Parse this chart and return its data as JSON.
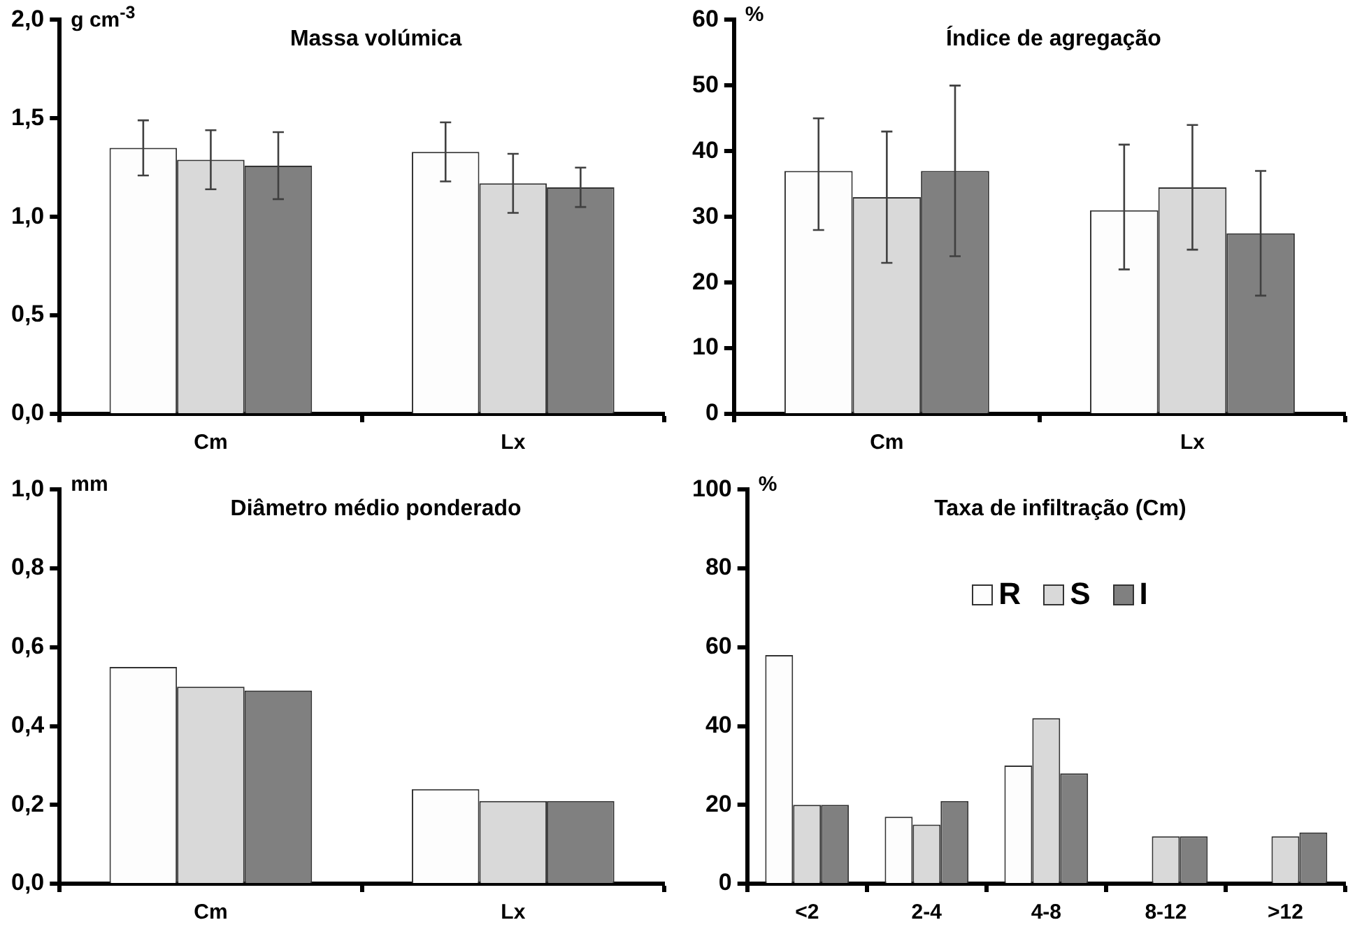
{
  "chart_data": [
    {
      "type": "bar",
      "title": "Massa volúmica",
      "ylabel": "g cm$^{-3}$",
      "categories": [
        "Cm",
        "Lx"
      ],
      "ylim": [
        0,
        2
      ],
      "yticks": [
        {
          "value": 0,
          "label": "0,0"
        },
        {
          "value": 0.5,
          "label": "0,5"
        },
        {
          "value": 1,
          "label": "1,0"
        },
        {
          "value": 1.5,
          "label": "1,5"
        },
        {
          "value": 2,
          "label": "2,0"
        }
      ],
      "grid": false,
      "legend": false,
      "series": [
        {
          "color": "#fdfdfd",
          "values": [
            1.35,
            1.33
          ],
          "errors": [
            [
              1.21,
              1.49
            ],
            [
              1.18,
              1.48
            ]
          ]
        },
        {
          "color": "#d9d9d9",
          "values": [
            1.29,
            1.17
          ],
          "errors": [
            [
              1.14,
              1.44
            ],
            [
              1.02,
              1.32
            ]
          ]
        },
        {
          "color": "#808080",
          "values": [
            1.26,
            1.15
          ],
          "errors": [
            [
              1.09,
              1.43
            ],
            [
              1.05,
              1.25
            ]
          ]
        }
      ]
    },
    {
      "type": "bar",
      "title": "Índice de agregação",
      "ylabel": "%",
      "categories": [
        "Cm",
        "Lx"
      ],
      "ylim": [
        0,
        60
      ],
      "yticks": [
        0,
        10,
        20,
        30,
        40,
        50,
        60
      ],
      "grid": false,
      "legend": false,
      "series": [
        {
          "color": "#fdfdfd",
          "values": [
            37,
            31
          ],
          "errors": [
            [
              28,
              45
            ],
            [
              22,
              41
            ]
          ]
        },
        {
          "color": "#d9d9d9",
          "values": [
            33,
            34.5
          ],
          "errors": [
            [
              23,
              43
            ],
            [
              25,
              44
            ]
          ]
        },
        {
          "color": "#808080",
          "values": [
            37,
            27.5
          ],
          "errors": [
            [
              24,
              50
            ],
            [
              18,
              37
            ]
          ]
        }
      ]
    },
    {
      "type": "bar",
      "title": "Diâmetro médio ponderado",
      "ylabel": "mm",
      "categories": [
        "Cm",
        "Lx"
      ],
      "ylim": [
        0,
        1
      ],
      "yticks": [
        {
          "value": 0,
          "label": "0,0"
        },
        {
          "value": 0.2,
          "label": "0,2"
        },
        {
          "value": 0.4,
          "label": "0,4"
        },
        {
          "value": 0.6,
          "label": "0,6"
        },
        {
          "value": 0.8,
          "label": "0,8"
        },
        {
          "value": 1,
          "label": "1,0"
        }
      ],
      "grid": false,
      "legend": false,
      "series": [
        {
          "color": "#fdfdfd",
          "values": [
            0.55,
            0.24
          ]
        },
        {
          "color": "#d9d9d9",
          "values": [
            0.5,
            0.21
          ]
        },
        {
          "color": "#808080",
          "values": [
            0.49,
            0.21
          ]
        }
      ]
    },
    {
      "type": "bar",
      "title": "Taxa de infiltração (Cm)",
      "ylabel": "%",
      "categories": [
        "<2",
        "2-4",
        "4-8",
        "8-12",
        ">12"
      ],
      "ylim": [
        0,
        100
      ],
      "yticks": [
        0,
        20,
        40,
        60,
        80,
        100
      ],
      "grid": false,
      "legend": "top",
      "series": [
        {
          "name": "R",
          "color": "#fdfdfd",
          "values": [
            58,
            17,
            30,
            null,
            null
          ]
        },
        {
          "name": "S",
          "color": "#d9d9d9",
          "values": [
            20,
            15,
            42,
            12,
            12
          ]
        },
        {
          "name": "I",
          "color": "#808080",
          "values": [
            20,
            21,
            28,
            12,
            13
          ]
        }
      ]
    }
  ]
}
